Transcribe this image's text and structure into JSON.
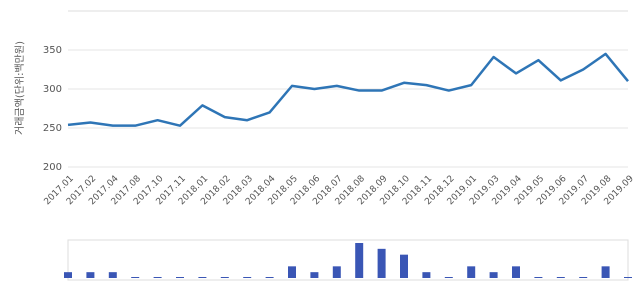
{
  "chart_data": [
    {
      "type": "line",
      "y_label": "거래금액(단위:백만원)",
      "categories": [
        "2017.01",
        "2017.02",
        "2017.04",
        "2017.08",
        "2017.10",
        "2017.11",
        "2018.01",
        "2018.02",
        "2018.03",
        "2018.04",
        "2018.05",
        "2018.06",
        "2018.07",
        "2018.08",
        "2018.09",
        "2018.10",
        "2018.11",
        "2018.12",
        "2019.01",
        "2019.03",
        "2019.04",
        "2019.05",
        "2019.06",
        "2019.07",
        "2019.08",
        "2019.09"
      ],
      "values": [
        254,
        257,
        253,
        253,
        260,
        253,
        279,
        264,
        260,
        270,
        304,
        300,
        304,
        298,
        298,
        308,
        305,
        298,
        305,
        341,
        320,
        337,
        311,
        325,
        345,
        310
      ],
      "color": "#2e75b6",
      "ylim": [
        200,
        400
      ],
      "yticks": [
        200,
        250,
        300,
        350
      ],
      "grid": true
    },
    {
      "type": "bar",
      "values": [
        1,
        1,
        1,
        0,
        0,
        0,
        0,
        0,
        0,
        0,
        2,
        1,
        2,
        6,
        5,
        4,
        1,
        0,
        2,
        1,
        2,
        0,
        0,
        0,
        2,
        0
      ],
      "color": "#3a56b5",
      "ylim": [
        0,
        6
      ]
    }
  ]
}
